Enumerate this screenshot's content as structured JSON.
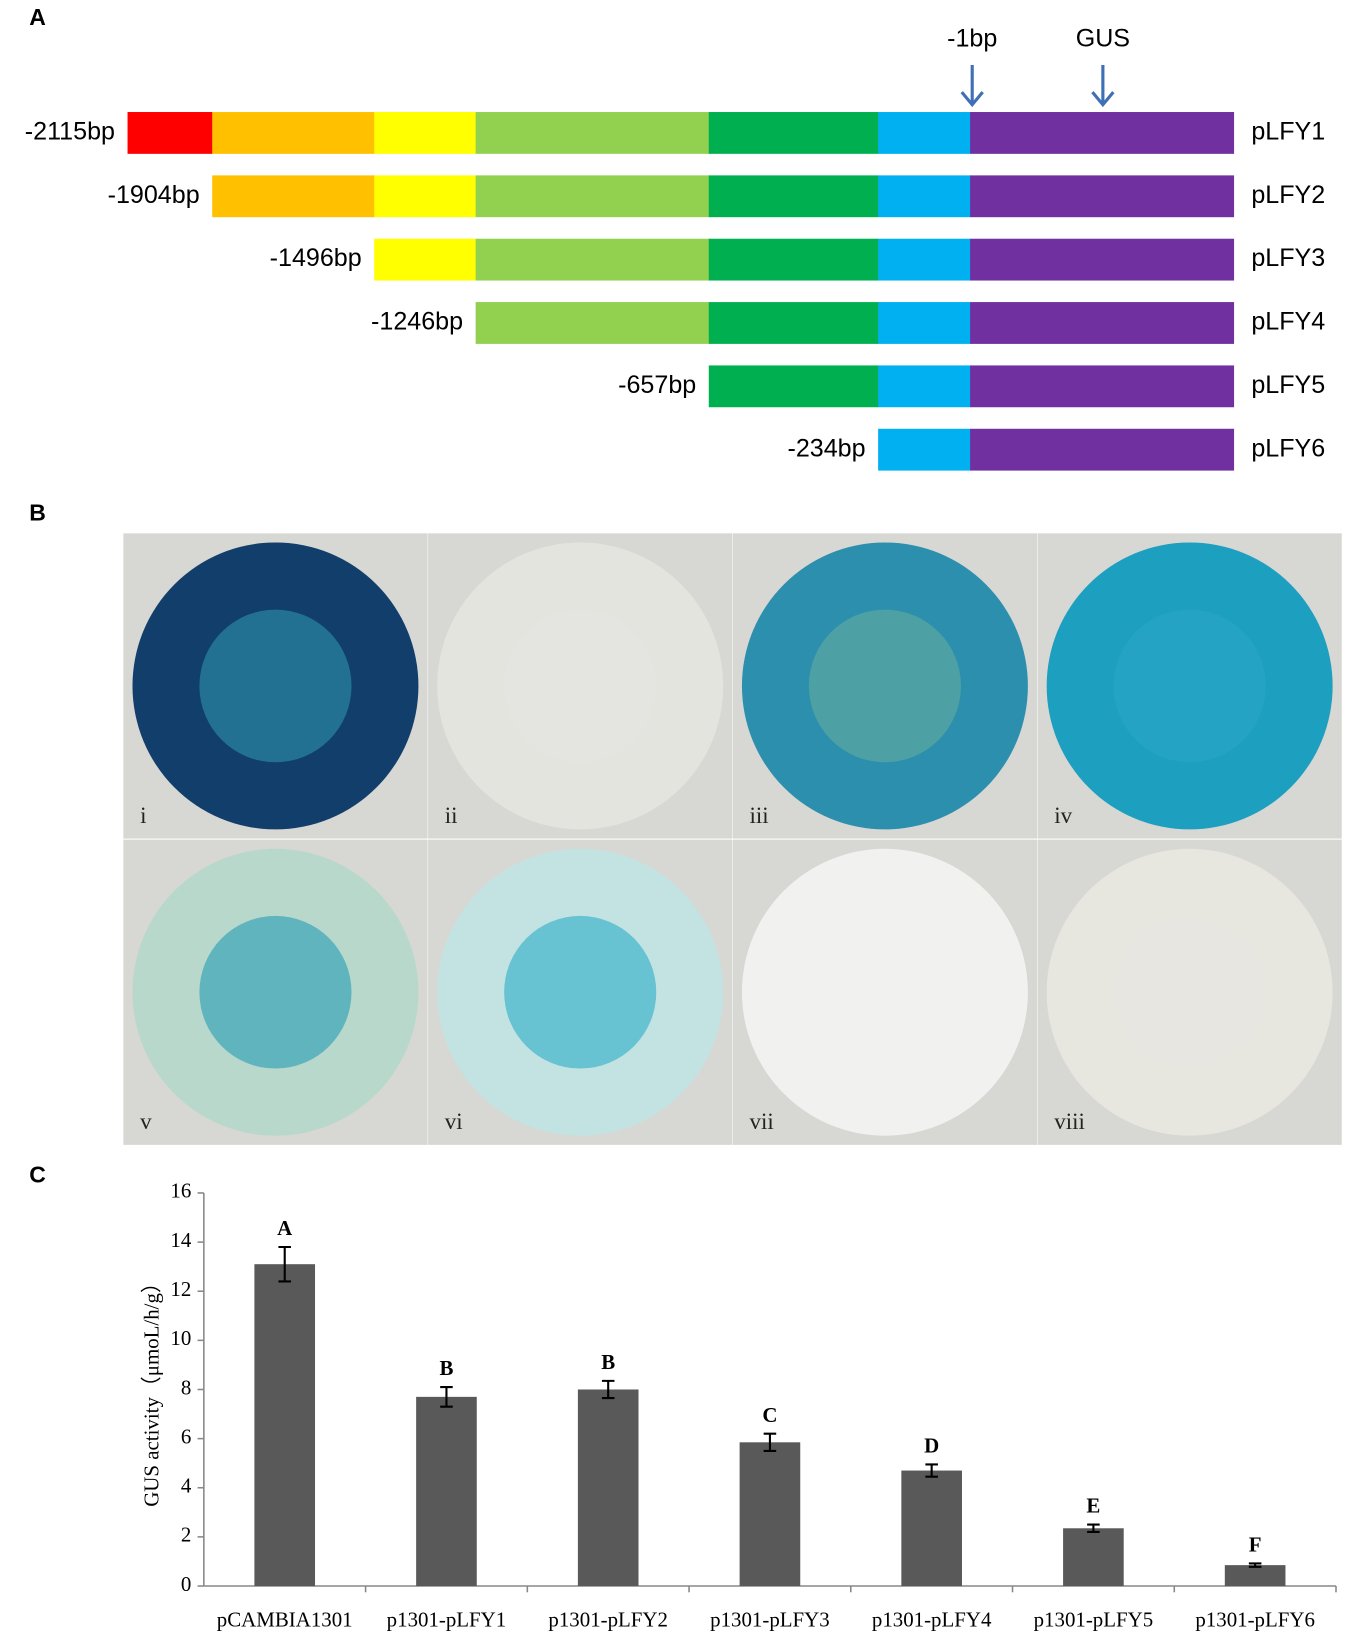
{
  "panels": {
    "a": "A",
    "b": "B",
    "c": "C"
  },
  "promoter_map": {
    "markers": [
      "-1bp",
      "GUS"
    ],
    "constructs": [
      {
        "start": "-2115bp",
        "name": "pLFY1"
      },
      {
        "start": "-1904bp",
        "name": "pLFY2"
      },
      {
        "start": "-1496bp",
        "name": "pLFY3"
      },
      {
        "start": "-1246bp",
        "name": "pLFY4"
      },
      {
        "start": "-657bp",
        "name": "pLFY5"
      },
      {
        "start": "-234bp",
        "name": "pLFY6"
      }
    ]
  },
  "staining": {
    "labels": [
      "i",
      "ii",
      "iii",
      "iv",
      "v",
      "vi",
      "vii",
      "viii"
    ]
  },
  "chart_data": {
    "type": "bar",
    "ylabel": "GUS activity（μmoL/h/g）",
    "categories": [
      "pCAMBIA1301",
      "p1301-pLFY1",
      "p1301-pLFY2",
      "p1301-pLFY3",
      "p1301-pLFY4",
      "p1301-pLFY5",
      "p1301-pLFY6"
    ],
    "values": [
      13.1,
      7.7,
      8.0,
      5.85,
      4.7,
      2.35,
      0.85
    ],
    "errors": [
      0.7,
      0.4,
      0.35,
      0.35,
      0.25,
      0.15,
      0.07
    ],
    "annotations": [
      "A",
      "B",
      "B",
      "C",
      "D",
      "E",
      "F"
    ],
    "color": "#595959",
    "ylim": [
      0,
      16
    ],
    "yticks": [
      0,
      2,
      4,
      6,
      8,
      10,
      12,
      14,
      16
    ]
  }
}
